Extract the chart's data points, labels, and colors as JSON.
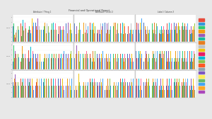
{
  "title": "Financial and Operational Report",
  "bg_app": "#3c3c3c",
  "bg_outer": "#e8e8e8",
  "bg_panel": "#ffffff",
  "toolbar_color": "#3a3a3a",
  "panel_titles": [
    "Attribute / Thing 1",
    "Attribute / Level 2",
    "Label / Column 3"
  ],
  "row_labels": [
    "2,500",
    "2,000",
    "1,500"
  ],
  "legend_colors": [
    "#e74c3c",
    "#3498db",
    "#2ecc71",
    "#f39c12",
    "#9b59b6",
    "#1abc9c",
    "#e67e22",
    "#bdc3c7",
    "#f1c40f",
    "#e91e63",
    "#00bcd4",
    "#8bc34a",
    "#ff5722",
    "#90a4ae",
    "#7e57c2",
    "#ffee58",
    "#66bb6a",
    "#42a5f5",
    "#ffa726",
    "#ab47bc"
  ],
  "bar_colors_per_bar": [
    "#4472c4",
    "#e74c3c",
    "#2ecc71",
    "#f39c12",
    "#9b59b6",
    "#00bcd4",
    "#e67e22",
    "#bdc3c7",
    "#f1c40f",
    "#ff6b9d",
    "#8bc34a",
    "#42a5f5"
  ],
  "panels": [
    {
      "row": 0,
      "col": 0,
      "groups": [
        [
          3.2,
          2.1,
          3.8,
          1.5,
          0.8,
          2.9,
          1.8,
          2.5,
          3.5,
          1.9,
          3.1,
          2.4
        ],
        [
          2.5,
          3.8,
          1.2,
          3.2,
          1.9,
          4.5,
          2.3,
          3.1,
          1.8,
          3.9,
          2.7,
          3.3
        ],
        [
          1.8,
          2.4,
          3.1,
          3.8,
          2.5,
          1.7,
          3.3,
          2.2,
          4.8,
          3.1,
          1.6,
          3.9
        ],
        [
          3.9,
          3.1,
          1.7,
          2.4,
          4.7,
          2.3,
          3.8,
          3.2,
          2.4,
          1.6,
          3.9,
          2.5
        ],
        [
          2.4,
          1.6,
          3.2,
          3.9,
          2.4,
          3.1,
          1.7,
          3.8,
          3.1,
          2.4,
          3.2,
          1.8
        ],
        [
          3.1,
          2.4,
          3.8,
          1.6,
          3.2,
          3.9,
          2.4,
          1.8,
          3.2,
          3.8,
          2.5,
          3.1
        ],
        [
          1.6,
          3.2,
          2.4,
          3.8,
          3.1,
          2.4,
          3.9,
          1.7,
          2.4,
          3.1,
          3.8,
          2.5
        ],
        [
          3.8,
          2.5,
          3.1,
          1.7,
          3.9,
          3.2,
          1.6,
          2.4,
          3.8,
          3.2,
          2.4,
          1.7
        ]
      ]
    },
    {
      "row": 0,
      "col": 1,
      "groups": [
        [
          3.8,
          2.4,
          4.9,
          1.6,
          3.2,
          2.5,
          3.9,
          1.7,
          2.5,
          3.2,
          3.9,
          2.4
        ],
        [
          2.4,
          3.2,
          1.6,
          3.9,
          2.5,
          3.1,
          1.8,
          3.8,
          3.2,
          2.4,
          1.7,
          3.2
        ],
        [
          3.2,
          3.9,
          2.4,
          3.1,
          1.6,
          3.8,
          2.5,
          3.2,
          3.9,
          1.7,
          3.2,
          2.5
        ],
        [
          1.7,
          2.5,
          3.9,
          3.2,
          2.4,
          1.6,
          3.2,
          3.8,
          2.4,
          3.1,
          1.7,
          3.8
        ],
        [
          3.9,
          3.2,
          2.4,
          1.7,
          3.8,
          3.2,
          2.5,
          3.9,
          1.6,
          3.2,
          2.4,
          3.1
        ],
        [
          2.5,
          1.7,
          3.2,
          3.9,
          2.4,
          3.8,
          3.9,
          1.6,
          3.2,
          2.5,
          3.8,
          1.7
        ],
        [
          3.2,
          3.8,
          1.7,
          2.4,
          3.2,
          3.9,
          1.6,
          2.5,
          3.8,
          3.2,
          1.7,
          3.2
        ],
        [
          1.6,
          3.2,
          3.9,
          2.5,
          1.7,
          2.4,
          3.2,
          3.8,
          2.5,
          1.6,
          3.9,
          2.4
        ]
      ]
    },
    {
      "row": 0,
      "col": 2,
      "groups": [
        [
          2.4,
          3.9,
          3.2,
          1.6,
          3.8,
          2.5,
          3.2,
          1.7,
          3.9,
          2.4,
          3.1,
          4.8
        ],
        [
          3.9,
          2.5,
          1.7,
          3.2,
          2.4,
          3.8,
          1.6,
          3.2,
          2.5,
          3.9,
          1.7,
          2.4
        ],
        [
          1.6,
          3.2,
          3.8,
          2.4,
          3.1,
          1.7,
          3.9,
          2.5,
          3.2,
          1.6,
          3.8,
          3.2
        ],
        [
          3.2,
          1.7,
          2.4,
          3.9,
          1.6,
          3.2,
          2.5,
          3.8,
          1.7,
          3.2,
          2.4,
          1.6
        ],
        [
          2.4,
          3.8,
          3.2,
          1.6,
          2.4,
          3.9,
          3.2,
          1.7,
          2.4,
          3.8,
          3.2,
          2.4
        ],
        [
          3.9,
          1.6,
          2.4,
          3.2,
          3.8,
          2.5,
          1.7,
          3.2,
          3.9,
          1.6,
          3.2,
          2.5
        ],
        [
          1.7,
          3.2,
          3.9,
          2.4,
          1.6,
          3.2,
          3.8,
          2.5,
          1.7,
          3.2,
          2.4,
          3.8
        ],
        [
          3.2,
          2.5,
          1.6,
          3.8,
          3.2,
          1.7,
          2.4,
          3.9,
          3.2,
          2.5,
          3.8,
          1.6
        ]
      ]
    },
    {
      "row": 1,
      "col": 0,
      "groups": [
        [
          1.6,
          3.2,
          4.9,
          2.4,
          3.8,
          1.6,
          3.2,
          2.4,
          3.9,
          1.7,
          3.2,
          2.5
        ],
        [
          3.9,
          1.6,
          2.4,
          4.8,
          1.7,
          3.2,
          2.4,
          3.8,
          1.6,
          3.2,
          2.4,
          3.9
        ],
        [
          2.4,
          3.9,
          1.6,
          3.2,
          2.4,
          4.7,
          1.6,
          3.2,
          2.4,
          3.8,
          1.6,
          3.2
        ],
        [
          3.2,
          2.4,
          3.8,
          1.6,
          3.2,
          2.4,
          3.8,
          1.6,
          3.2,
          2.4,
          3.8,
          1.6
        ],
        [
          1.6,
          3.8,
          2.4,
          3.2,
          1.6,
          3.8,
          2.4,
          3.2,
          1.6,
          3.8,
          2.4,
          3.2
        ],
        [
          3.8,
          2.4,
          3.2,
          1.6,
          3.8,
          2.4,
          3.2,
          1.6,
          3.8,
          2.4,
          3.2,
          1.6
        ],
        [
          2.4,
          3.2,
          1.6,
          3.8,
          2.4,
          3.2,
          1.6,
          3.8,
          2.4,
          3.2,
          1.6,
          3.8
        ],
        [
          3.2,
          1.6,
          3.8,
          2.4,
          3.2,
          1.6,
          3.8,
          2.4,
          3.2,
          1.6,
          3.8,
          2.4
        ]
      ]
    },
    {
      "row": 1,
      "col": 1,
      "groups": [
        [
          2.4,
          3.8,
          1.6,
          3.2,
          4.9,
          2.4,
          1.6,
          3.2,
          3.8,
          2.4,
          1.6,
          3.2
        ],
        [
          3.8,
          1.6,
          3.2,
          2.4,
          1.6,
          3.8,
          3.2,
          2.4,
          1.6,
          3.8,
          3.2,
          2.4
        ],
        [
          1.6,
          3.2,
          2.4,
          3.8,
          2.4,
          1.6,
          3.8,
          3.2,
          2.4,
          1.6,
          3.8,
          3.2
        ],
        [
          3.2,
          2.4,
          3.8,
          1.6,
          3.2,
          2.4,
          3.8,
          1.6,
          3.2,
          2.4,
          1.6,
          3.8
        ],
        [
          2.4,
          3.8,
          1.6,
          3.2,
          2.4,
          3.8,
          1.6,
          3.2,
          2.4,
          3.8,
          1.6,
          3.2
        ],
        [
          3.8,
          1.6,
          3.2,
          2.4,
          3.8,
          1.6,
          3.2,
          2.4,
          3.8,
          1.6,
          3.2,
          2.4
        ],
        [
          1.6,
          3.2,
          2.4,
          3.8,
          1.6,
          3.2,
          2.4,
          3.8,
          1.6,
          3.2,
          2.4,
          3.8
        ],
        [
          3.2,
          2.4,
          3.8,
          1.6,
          3.2,
          2.4,
          3.8,
          1.6,
          3.2,
          2.4,
          3.8,
          1.6
        ]
      ]
    },
    {
      "row": 1,
      "col": 2,
      "groups": [
        [
          3.8,
          2.4,
          1.6,
          3.2,
          2.4,
          3.8,
          1.6,
          3.2,
          3.8,
          2.4,
          1.6,
          3.2
        ],
        [
          1.6,
          3.8,
          3.2,
          2.4,
          3.8,
          1.6,
          3.2,
          2.4,
          1.6,
          3.8,
          3.2,
          2.4
        ],
        [
          3.2,
          1.6,
          2.4,
          3.8,
          1.6,
          3.2,
          2.4,
          3.8,
          3.2,
          1.6,
          2.4,
          3.8
        ],
        [
          2.4,
          3.2,
          3.8,
          1.6,
          3.2,
          2.4,
          3.8,
          1.6,
          2.4,
          3.2,
          3.8,
          1.6
        ],
        [
          3.8,
          1.6,
          3.2,
          2.4,
          3.8,
          1.6,
          3.2,
          2.4,
          3.8,
          1.6,
          3.2,
          2.4
        ],
        [
          1.6,
          3.2,
          2.4,
          3.8,
          1.6,
          3.2,
          2.4,
          3.8,
          1.6,
          3.2,
          2.4,
          3.8
        ],
        [
          3.2,
          2.4,
          3.8,
          1.6,
          3.2,
          2.4,
          3.8,
          1.6,
          3.2,
          2.4,
          1.6,
          3.8
        ],
        [
          2.4,
          3.8,
          1.6,
          3.2,
          2.4,
          3.8,
          1.6,
          3.2,
          2.4,
          3.8,
          3.2,
          1.6
        ]
      ]
    },
    {
      "row": 2,
      "col": 0,
      "groups": [
        [
          3.2,
          1.6,
          2.4,
          3.8,
          4.7,
          1.6,
          3.2,
          2.4,
          3.8,
          1.6,
          3.2,
          2.4
        ],
        [
          1.6,
          3.8,
          2.4,
          3.2,
          1.6,
          3.8,
          2.4,
          3.2,
          1.6,
          3.8,
          2.4,
          3.2
        ],
        [
          3.8,
          2.4,
          3.2,
          1.6,
          3.8,
          2.4,
          3.2,
          1.6,
          3.8,
          2.4,
          3.2,
          1.6
        ],
        [
          2.4,
          3.2,
          1.6,
          3.8,
          2.4,
          3.2,
          1.6,
          3.8,
          2.4,
          3.2,
          1.6,
          3.8
        ],
        [
          3.2,
          1.6,
          3.8,
          2.4,
          3.2,
          1.6,
          3.8,
          2.4,
          3.2,
          1.6,
          3.8,
          2.4
        ],
        [
          1.6,
          3.8,
          2.4,
          3.2,
          1.6,
          3.8,
          2.4,
          3.2,
          1.6,
          3.8,
          2.4,
          3.2
        ],
        [
          3.8,
          2.4,
          3.2,
          1.6,
          3.8,
          2.4,
          3.2,
          1.6,
          3.8,
          2.4,
          3.2,
          1.6
        ],
        [
          2.4,
          3.2,
          1.6,
          3.8,
          2.4,
          3.2,
          1.6,
          3.8,
          2.4,
          3.2,
          1.6,
          3.8
        ]
      ]
    },
    {
      "row": 2,
      "col": 1,
      "groups": [
        [
          1.6,
          3.2,
          3.8,
          2.4,
          1.6,
          3.2,
          3.8,
          2.4,
          4.8,
          1.6,
          3.2,
          2.4
        ],
        [
          3.8,
          1.6,
          2.4,
          3.2,
          3.8,
          1.6,
          2.4,
          3.2,
          3.8,
          1.6,
          2.4,
          3.2
        ],
        [
          2.4,
          3.8,
          3.2,
          1.6,
          2.4,
          3.8,
          3.2,
          1.6,
          2.4,
          3.8,
          3.2,
          1.6
        ],
        [
          3.2,
          2.4,
          1.6,
          3.8,
          3.2,
          2.4,
          1.6,
          3.8,
          3.2,
          2.4,
          1.6,
          3.8
        ],
        [
          1.6,
          3.2,
          3.8,
          2.4,
          1.6,
          3.2,
          3.8,
          2.4,
          1.6,
          3.2,
          3.8,
          2.4
        ],
        [
          3.8,
          1.6,
          2.4,
          3.2,
          3.8,
          1.6,
          2.4,
          3.2,
          3.8,
          1.6,
          2.4,
          3.2
        ],
        [
          2.4,
          3.8,
          3.2,
          1.6,
          2.4,
          3.8,
          3.2,
          1.6,
          2.4,
          3.8,
          3.2,
          1.6
        ],
        [
          3.2,
          2.4,
          1.6,
          3.8,
          3.2,
          2.4,
          1.6,
          3.8,
          3.2,
          2.4,
          1.6,
          3.8
        ]
      ]
    },
    {
      "row": 2,
      "col": 2,
      "groups": [
        [
          2.4,
          3.8,
          3.2,
          1.6,
          2.4,
          3.8,
          3.2,
          1.6,
          2.4,
          3.8,
          3.2,
          1.6
        ],
        [
          3.2,
          1.6,
          3.8,
          2.4,
          3.2,
          1.6,
          3.8,
          2.4,
          3.2,
          1.6,
          3.8,
          2.4
        ],
        [
          1.6,
          3.2,
          2.4,
          3.8,
          1.6,
          3.2,
          2.4,
          3.8,
          1.6,
          3.2,
          2.4,
          3.8
        ],
        [
          3.8,
          2.4,
          1.6,
          3.2,
          3.8,
          2.4,
          1.6,
          3.2,
          3.8,
          2.4,
          1.6,
          3.2
        ],
        [
          2.4,
          3.8,
          3.2,
          1.6,
          2.4,
          3.8,
          3.2,
          1.6,
          2.4,
          3.8,
          3.2,
          1.6
        ],
        [
          3.2,
          1.6,
          3.8,
          2.4,
          3.2,
          1.6,
          3.8,
          2.4,
          3.2,
          1.6,
          3.8,
          2.4
        ],
        [
          1.6,
          3.2,
          2.4,
          3.8,
          1.6,
          3.2,
          2.4,
          3.8,
          1.6,
          3.2,
          2.4,
          3.8
        ],
        [
          3.8,
          2.4,
          1.6,
          3.2,
          3.8,
          2.4,
          1.6,
          3.2,
          3.8,
          2.4,
          1.6,
          3.2
        ]
      ]
    }
  ]
}
